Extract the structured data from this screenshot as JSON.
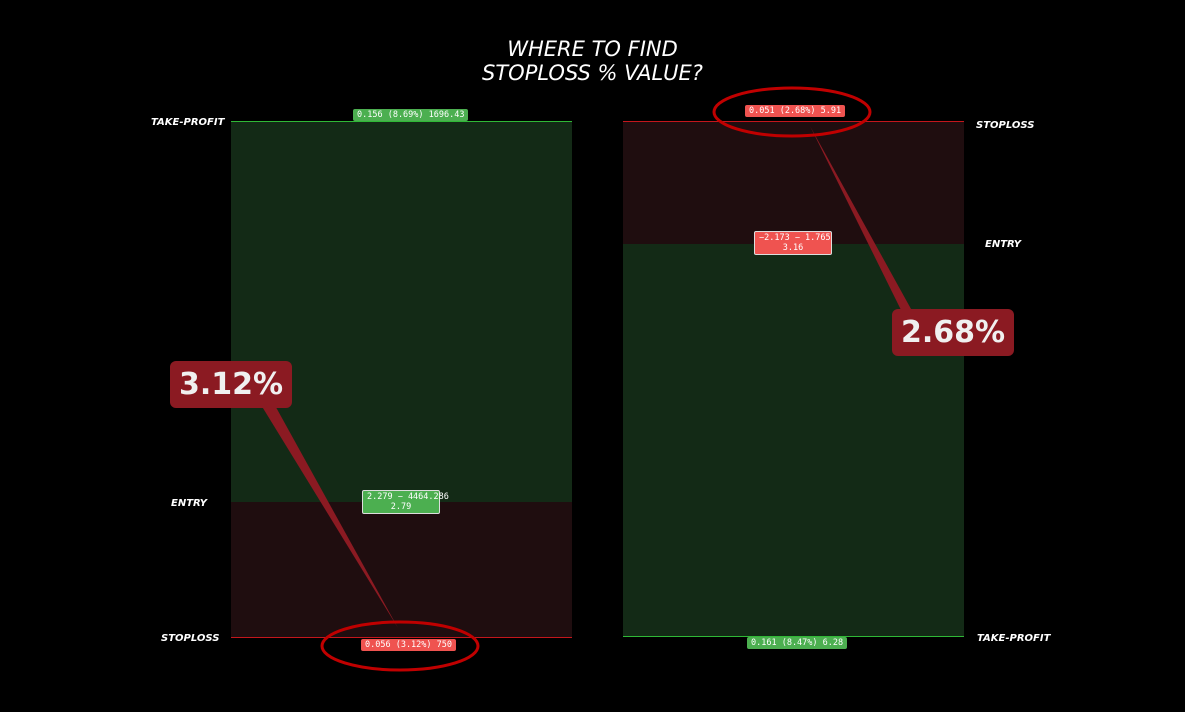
{
  "title": {
    "line1": "WHERE TO FIND",
    "line2": "STOPLOSS % VALUE?"
  },
  "left_panel": {
    "labels": {
      "take_profit": "TAKE-PROFIT",
      "entry": "ENTRY",
      "stoploss": "STOPLOSS"
    },
    "take_profit_tag": "0.156 (8.69%) 1696.43",
    "entry_tag_line1": "2.279 − 4464.286",
    "entry_tag_line2": "2.79",
    "stoploss_tag": "0.056 (3.12%) 750",
    "callout": "3.12%"
  },
  "right_panel": {
    "labels": {
      "stoploss": "STOPLOSS",
      "entry": "ENTRY",
      "take_profit": "TAKE-PROFIT"
    },
    "stoploss_tag": "0.051 (2.68%) 5.91",
    "entry_tag_line1": "−2.173 − 1.765",
    "entry_tag_line2": "3.16",
    "take_profit_tag": "0.161 (8.47%) 6.28",
    "callout": "2.68%"
  },
  "colors": {
    "profit": "#4caf50",
    "loss": "#ef5350",
    "callout": "#8b1a22",
    "highlight": "#c00000"
  }
}
